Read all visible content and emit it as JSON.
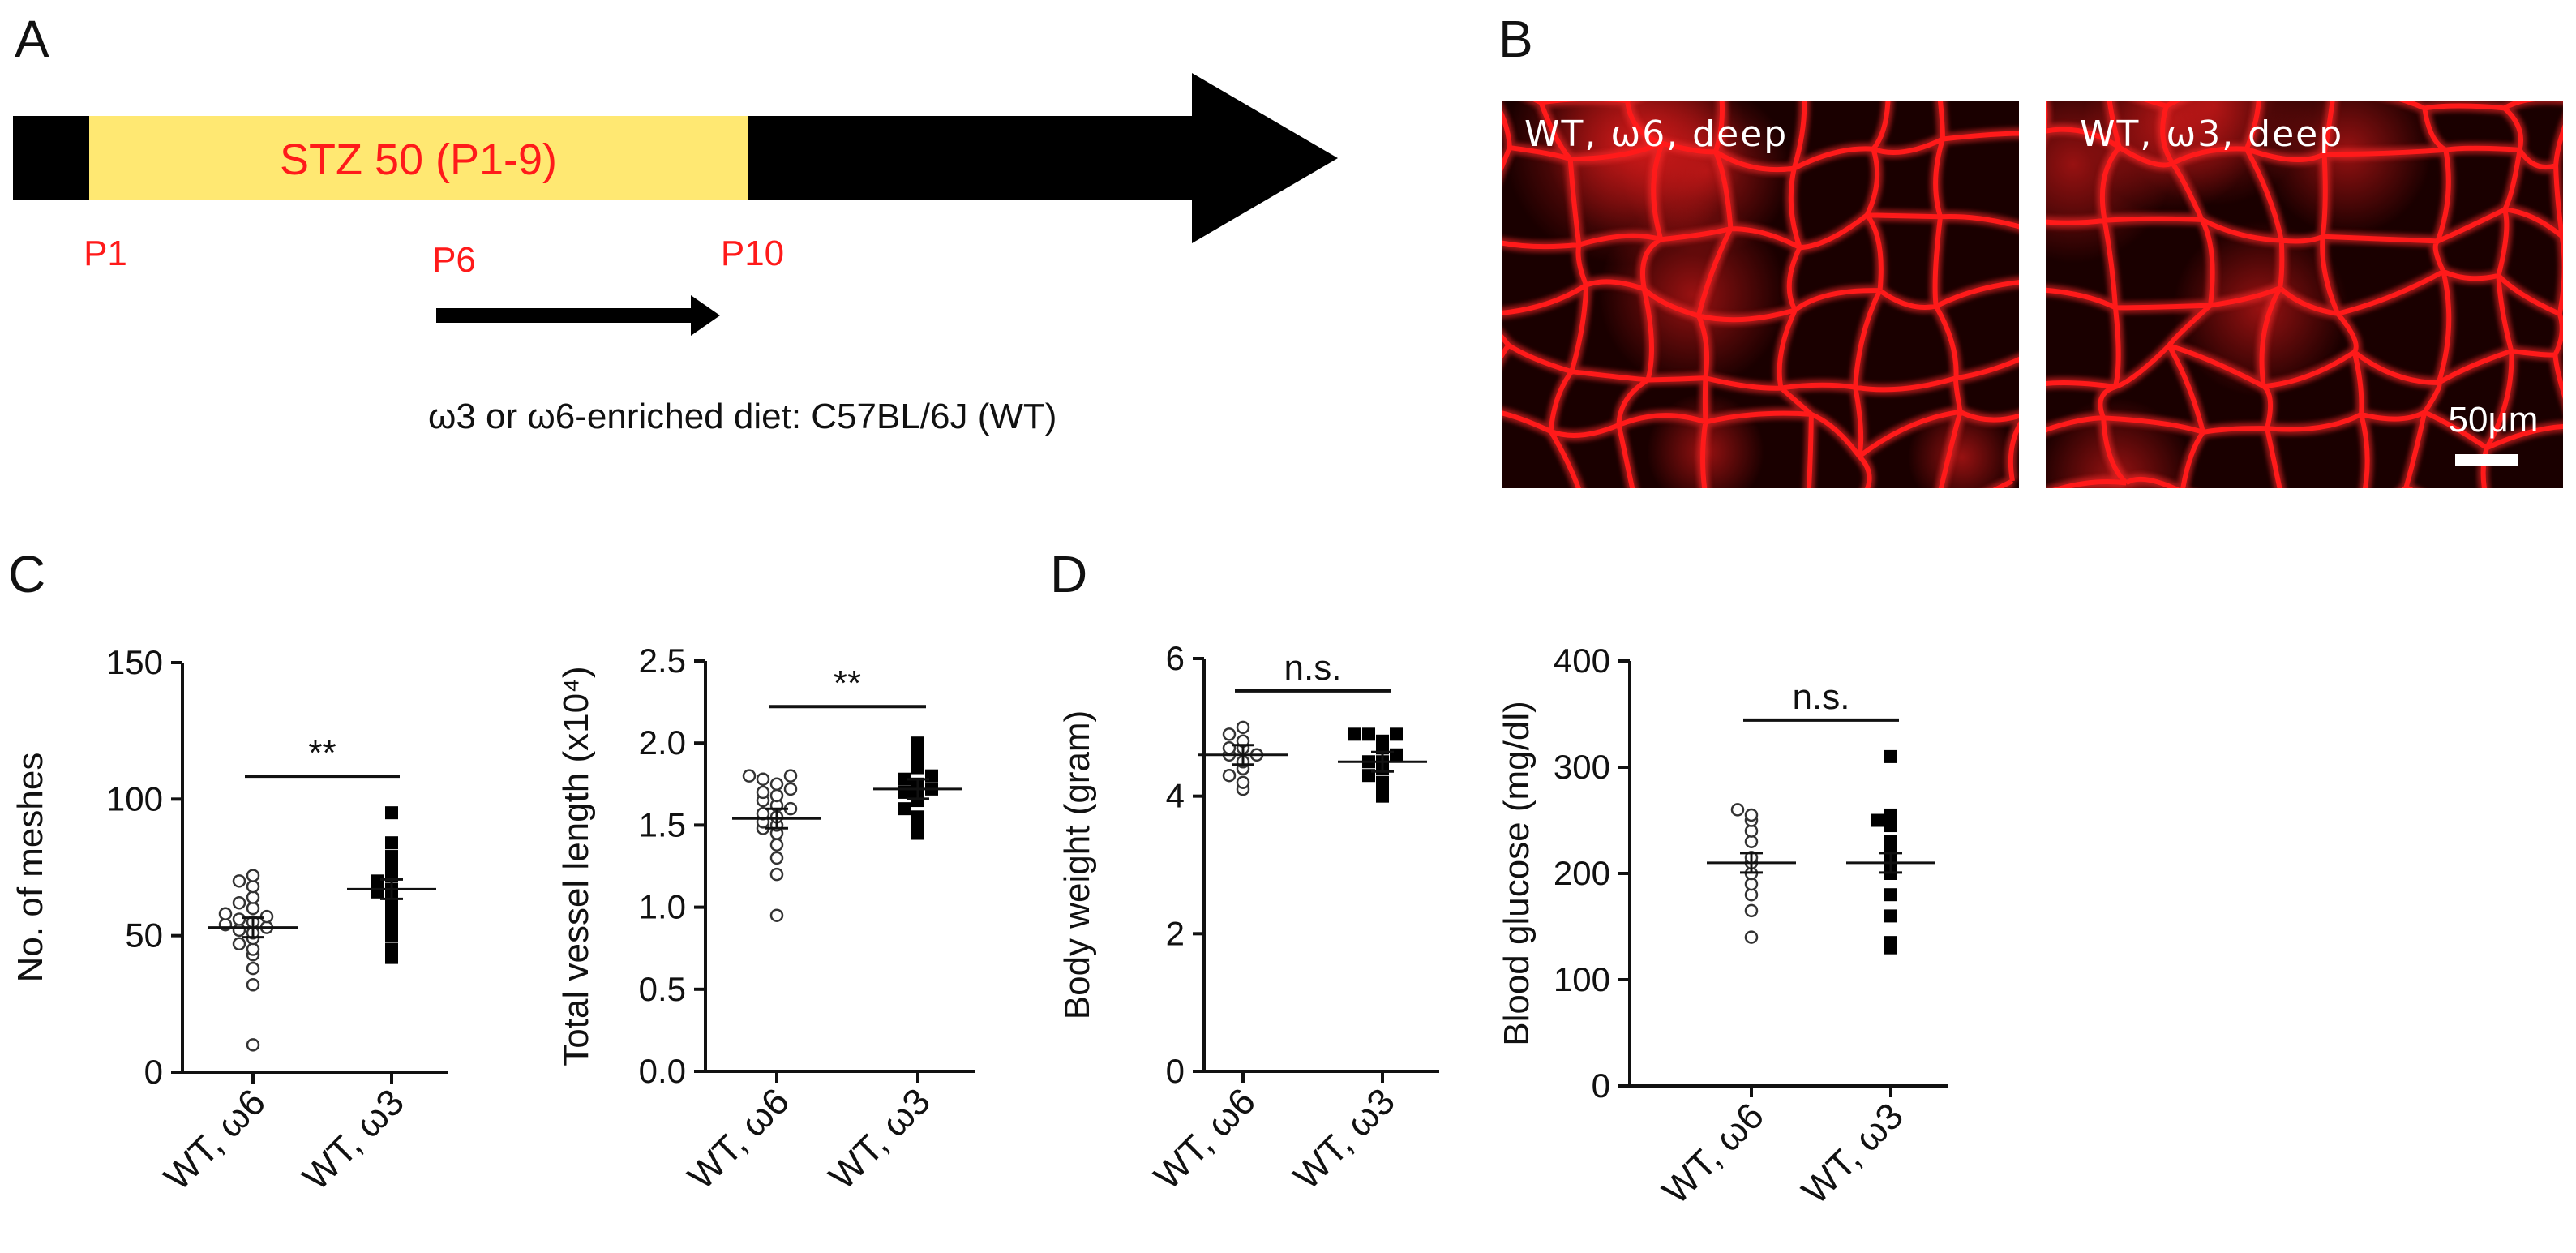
{
  "panels": {
    "A": {
      "letter": "A",
      "treatment_label": "STZ 50 (P1-9)",
      "tick_labels": [
        "P1",
        "P6",
        "P10"
      ],
      "diet_caption": "ω3 or ω6-enriched diet: C57BL/6J (WT)",
      "colors": {
        "treatment_bar": "#ffe872",
        "timeline": "#000000",
        "label": "#ff1a1a"
      }
    },
    "B": {
      "letter": "B",
      "images": [
        {
          "label": "WT, ω6, deep"
        },
        {
          "label": "WT, ω3, deep"
        }
      ],
      "scale_bar": "50μm",
      "colors": {
        "vessel": "#ff1a1a",
        "background": "#1a0000"
      }
    },
    "C": {
      "letter": "C"
    },
    "D": {
      "letter": "D"
    }
  },
  "chart_data": [
    {
      "id": "meshes",
      "type": "scatter",
      "ylabel": "No. of meshes",
      "ylim": [
        0,
        150
      ],
      "yticks": [
        0,
        50,
        100,
        150
      ],
      "ytick_labels": [
        "0",
        "50",
        "100",
        "150"
      ],
      "categories": [
        "WT, ω6",
        "WT, ω3"
      ],
      "significance": "**",
      "series": [
        {
          "name": "WT, ω6",
          "marker": "open-circle",
          "mean": 53,
          "values": [
            10,
            32,
            38,
            43,
            45,
            47,
            49,
            51,
            52,
            53,
            54,
            55,
            56,
            57,
            58,
            60,
            62,
            64,
            68,
            70,
            72
          ]
        },
        {
          "name": "WT, ω3",
          "marker": "filled-square",
          "mean": 67,
          "values": [
            42,
            45,
            50,
            54,
            58,
            62,
            64,
            66,
            67,
            70,
            72,
            75,
            79,
            84,
            95
          ]
        }
      ]
    },
    {
      "id": "vessel-length",
      "type": "scatter",
      "ylabel": "Total vessel length (x10⁴)",
      "ylim": [
        0,
        2.5
      ],
      "yticks": [
        0,
        0.5,
        1.0,
        1.5,
        2.0,
        2.5
      ],
      "ytick_labels": [
        "0.0",
        "0.5",
        "1.0",
        "1.5",
        "2.0",
        "2.5"
      ],
      "categories": [
        "WT, ω6",
        "WT, ω3"
      ],
      "significance": "**",
      "series": [
        {
          "name": "WT, ω6",
          "marker": "open-circle",
          "mean": 1.54,
          "values": [
            0.95,
            1.2,
            1.3,
            1.38,
            1.45,
            1.48,
            1.5,
            1.52,
            1.55,
            1.57,
            1.6,
            1.62,
            1.65,
            1.68,
            1.7,
            1.72,
            1.75,
            1.78,
            1.8,
            1.8
          ]
        },
        {
          "name": "WT, ω3",
          "marker": "filled-square",
          "mean": 1.72,
          "values": [
            1.45,
            1.5,
            1.55,
            1.6,
            1.65,
            1.68,
            1.7,
            1.72,
            1.75,
            1.78,
            1.8,
            1.85,
            1.9,
            1.95,
            2.0
          ]
        }
      ]
    },
    {
      "id": "body-weight",
      "type": "scatter",
      "ylabel": "Body weight (gram)",
      "ylim": [
        0,
        6
      ],
      "yticks": [
        0,
        2,
        4,
        6
      ],
      "ytick_labels": [
        "0",
        "2",
        "4",
        "6"
      ],
      "categories": [
        "WT, ω6",
        "WT, ω3"
      ],
      "significance": "n.s.",
      "series": [
        {
          "name": "WT, ω6",
          "marker": "open-circle",
          "mean": 4.6,
          "values": [
            4.1,
            4.2,
            4.3,
            4.4,
            4.5,
            4.6,
            4.6,
            4.7,
            4.7,
            4.8,
            4.9,
            5.0
          ]
        },
        {
          "name": "WT, ω3",
          "marker": "filled-square",
          "mean": 4.5,
          "values": [
            4.0,
            4.1,
            4.2,
            4.3,
            4.4,
            4.5,
            4.5,
            4.6,
            4.7,
            4.8,
            4.9,
            4.9,
            4.9
          ]
        }
      ]
    },
    {
      "id": "blood-glucose",
      "type": "scatter",
      "ylabel": "Blood glucose (mg/dl)",
      "ylim": [
        0,
        400
      ],
      "yticks": [
        0,
        100,
        200,
        300,
        400
      ],
      "ytick_labels": [
        "0",
        "100",
        "200",
        "300",
        "400"
      ],
      "categories": [
        "WT, ω6",
        "WT, ω3"
      ],
      "significance": "n.s.",
      "series": [
        {
          "name": "WT, ω6",
          "marker": "open-circle",
          "mean": 210,
          "values": [
            140,
            165,
            180,
            190,
            200,
            210,
            215,
            230,
            240,
            250,
            255,
            260
          ]
        },
        {
          "name": "WT, ω3",
          "marker": "filled-square",
          "mean": 210,
          "values": [
            130,
            135,
            160,
            180,
            200,
            210,
            220,
            230,
            245,
            250,
            255,
            310
          ]
        }
      ]
    }
  ]
}
